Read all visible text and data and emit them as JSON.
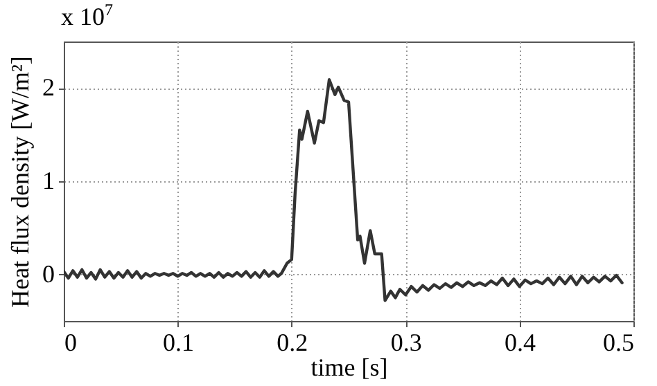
{
  "chart_data": {
    "type": "line",
    "xlabel": "time [s]",
    "ylabel": "Heat flux density [W/m²]",
    "annotations": [
      "x 10$^{7}$"
    ],
    "xlim": [
      0,
      0.5
    ],
    "xticks": [
      0,
      0.1,
      0.2,
      0.3,
      0.4,
      0.5
    ],
    "ylim": [
      -0.5,
      2.5
    ],
    "yticks": [
      0,
      1,
      2
    ],
    "grid": true,
    "line_style": "solid",
    "series": [
      {
        "color": "#333333",
        "x": [
          0,
          0.004,
          0.008,
          0.012,
          0.016,
          0.02,
          0.024,
          0.028,
          0.032,
          0.036,
          0.04,
          0.044,
          0.048,
          0.052,
          0.056,
          0.06,
          0.064,
          0.068,
          0.072,
          0.076,
          0.08,
          0.084,
          0.088,
          0.092,
          0.096,
          0.1,
          0.104,
          0.108,
          0.112,
          0.116,
          0.12,
          0.124,
          0.128,
          0.132,
          0.136,
          0.14,
          0.144,
          0.148,
          0.152,
          0.156,
          0.16,
          0.164,
          0.168,
          0.172,
          0.176,
          0.18,
          0.184,
          0.188,
          0.191,
          0.196,
          0.2,
          0.203,
          0.207,
          0.209,
          0.214,
          0.22,
          0.224,
          0.228,
          0.233,
          0.238,
          0.241,
          0.246,
          0.25,
          0.254,
          0.258,
          0.26,
          0.264,
          0.269,
          0.273,
          0.279,
          0.282,
          0.287,
          0.291,
          0.295,
          0.3,
          0.305,
          0.31,
          0.315,
          0.32,
          0.325,
          0.33,
          0.335,
          0.34,
          0.345,
          0.35,
          0.355,
          0.36,
          0.365,
          0.37,
          0.375,
          0.38,
          0.385,
          0.39,
          0.395,
          0.4,
          0.405,
          0.41,
          0.415,
          0.42,
          0.425,
          0.43,
          0.435,
          0.44,
          0.445,
          0.45,
          0.455,
          0.46,
          0.465,
          0.47,
          0.475,
          0.48,
          0.485,
          0.49
        ],
        "values": [
          0.03,
          -0.04,
          0.04,
          -0.03,
          0.05,
          -0.04,
          0.02,
          -0.05,
          0.05,
          -0.03,
          0.03,
          -0.04,
          0.02,
          -0.03,
          0.04,
          -0.03,
          0.03,
          -0.04,
          0.01,
          -0.02,
          0.01,
          -0.01,
          0.01,
          -0.01,
          0.01,
          -0.02,
          0.01,
          -0.01,
          0.02,
          -0.02,
          0.01,
          -0.02,
          0.01,
          -0.03,
          0.02,
          -0.03,
          0.01,
          -0.02,
          0.02,
          -0.02,
          0.03,
          -0.03,
          0.02,
          -0.03,
          0.04,
          -0.02,
          0.03,
          -0.02,
          0.01,
          0.12,
          0.16,
          0.86,
          1.55,
          1.45,
          1.75,
          1.41,
          1.65,
          1.63,
          2.09,
          1.93,
          2.01,
          1.87,
          1.85,
          1.11,
          0.37,
          0.41,
          0.12,
          0.47,
          0.22,
          0.22,
          -0.28,
          -0.18,
          -0.25,
          -0.16,
          -0.22,
          -0.13,
          -0.19,
          -0.12,
          -0.17,
          -0.11,
          -0.15,
          -0.1,
          -0.14,
          -0.09,
          -0.13,
          -0.08,
          -0.12,
          -0.09,
          -0.12,
          -0.07,
          -0.11,
          -0.04,
          -0.12,
          -0.05,
          -0.13,
          -0.06,
          -0.1,
          -0.07,
          -0.1,
          -0.04,
          -0.11,
          -0.03,
          -0.1,
          -0.02,
          -0.11,
          -0.02,
          -0.09,
          -0.03,
          -0.08,
          -0.02,
          -0.07,
          -0.01,
          -0.09
        ]
      }
    ]
  }
}
